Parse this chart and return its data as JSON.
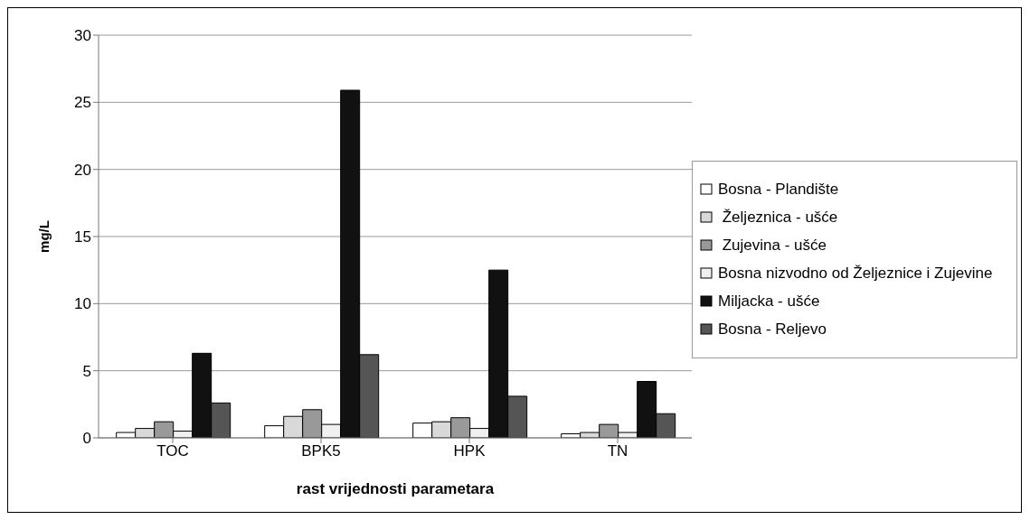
{
  "chart_data": {
    "type": "bar",
    "xlabel": "rast vrijednosti parametara",
    "ylabel": "mg/L",
    "categories": [
      "TOC",
      "BPK5",
      "HPK",
      "TN"
    ],
    "series": [
      {
        "name": "Bosna - Plandište",
        "color": "#ffffff",
        "values": [
          0.4,
          0.9,
          1.1,
          0.3
        ]
      },
      {
        "name": " Željeznica - ušće",
        "color": "#d9d9d9",
        "values": [
          0.7,
          1.6,
          1.2,
          0.4
        ]
      },
      {
        "name": " Zujevina - ušće",
        "color": "#999999",
        "values": [
          1.2,
          2.1,
          1.5,
          1.0
        ]
      },
      {
        "name": "Bosna nizvodno od Željeznice i Zujevine",
        "color": "#f0f0f0",
        "values": [
          0.5,
          1.0,
          0.7,
          0.4
        ]
      },
      {
        "name": "Miljacka - ušće",
        "color": "#111111",
        "values": [
          6.3,
          25.9,
          12.5,
          4.2
        ]
      },
      {
        "name": "Bosna - Reljevo",
        "color": "#555555",
        "values": [
          2.6,
          6.2,
          3.1,
          1.8
        ]
      }
    ],
    "ylim": [
      0,
      30
    ],
    "yticks": [
      0,
      5,
      10,
      15,
      20,
      25,
      30
    ],
    "grid": "y",
    "legend": "right"
  }
}
